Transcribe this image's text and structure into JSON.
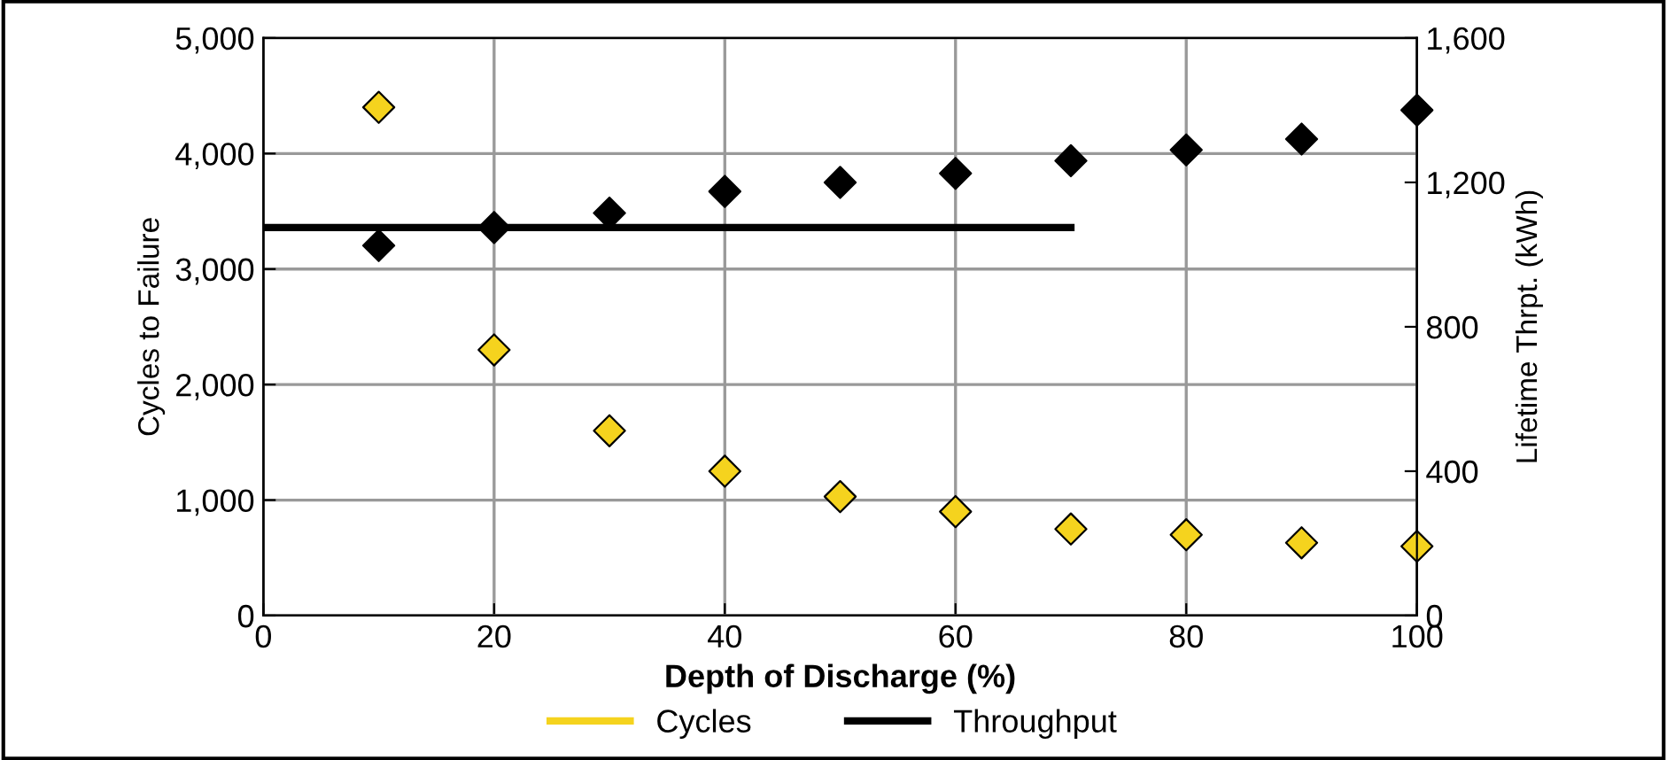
{
  "chart_data": {
    "type": "scatter",
    "xlabel": "Depth of Discharge (%)",
    "ylabel": "Cycles to Failure",
    "y2label": "Lifetime Thrpt. (kWh)",
    "xlim": [
      0,
      100
    ],
    "xticks": [
      0,
      20,
      40,
      60,
      80,
      100
    ],
    "ylim": [
      0,
      5000
    ],
    "yticks": [
      {
        "value": 0,
        "label": "0"
      },
      {
        "value": 1000,
        "label": "1,000"
      },
      {
        "value": 2000,
        "label": "2,000"
      },
      {
        "value": 3000,
        "label": "3,000"
      },
      {
        "value": 4000,
        "label": "4,000"
      },
      {
        "value": 5000,
        "label": "5,000"
      }
    ],
    "y2lim": [
      0,
      1600
    ],
    "y2ticks": [
      {
        "value": 0,
        "label": "0"
      },
      {
        "value": 400,
        "label": "400"
      },
      {
        "value": 800,
        "label": "800"
      },
      {
        "value": 1200,
        "label": "1,200"
      },
      {
        "value": 1600,
        "label": "1,600"
      }
    ],
    "grid": true,
    "legend": "bottom",
    "marker": "diamond",
    "series": [
      {
        "name": "Cycles",
        "color": "#f5d31e",
        "x": [
          10,
          20,
          30,
          40,
          50,
          60,
          70,
          80,
          90,
          100
        ],
        "values": [
          4400,
          2300,
          1600,
          1250,
          1030,
          900,
          750,
          700,
          630,
          600
        ]
      },
      {
        "name": "Throughput",
        "color": "#000000",
        "axis": "y2",
        "x": [
          10,
          20,
          30,
          40,
          50,
          60,
          70,
          80,
          90,
          100
        ],
        "values": [
          1025,
          1075,
          1115,
          1175,
          1200,
          1225,
          1260,
          1290,
          1320,
          1400
        ]
      },
      {
        "type": "line",
        "marker": "none",
        "color": "#000000",
        "axis": "y2",
        "x": [
          0,
          70
        ],
        "values": [
          1075,
          1075
        ]
      }
    ]
  }
}
